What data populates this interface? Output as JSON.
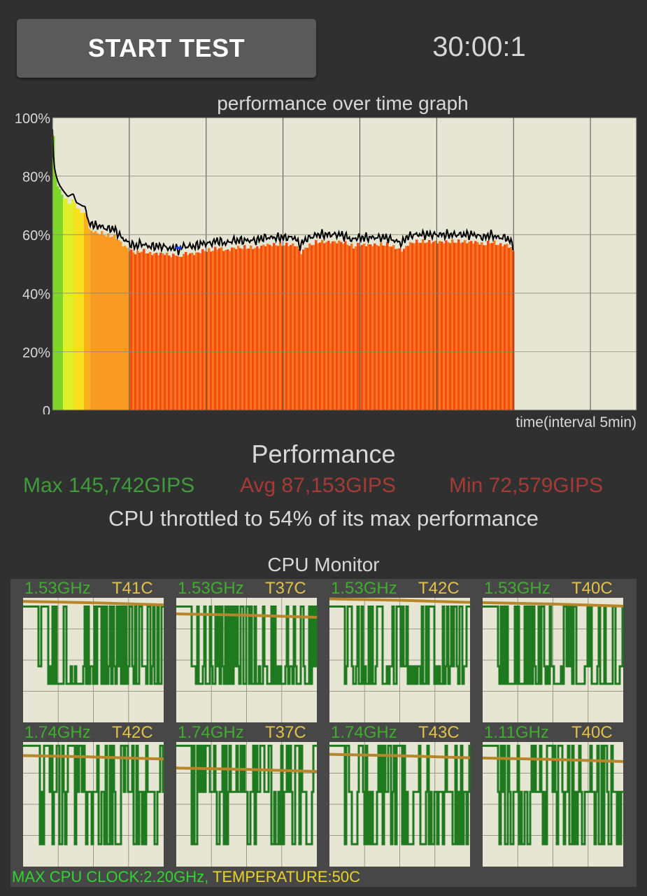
{
  "header": {
    "start_button": "START TEST",
    "timer": "30:00:1"
  },
  "graph": {
    "title": "performance over time graph",
    "y_ticks": [
      "100%",
      "80%",
      "60%",
      "40%",
      "20%",
      "0"
    ],
    "x_label": "time(interval 5min)",
    "progress_fraction": 0.786,
    "chart_data": {
      "type": "area",
      "title": "performance over time graph",
      "xlabel": "time(interval 5min)",
      "ylabel": "",
      "ylim": [
        0,
        100
      ],
      "grid": true,
      "x_intervals": 7.6,
      "points": [
        [
          0.0,
          96
        ],
        [
          0.01,
          88
        ],
        [
          0.03,
          82
        ],
        [
          0.06,
          79
        ],
        [
          0.09,
          77
        ],
        [
          0.14,
          75
        ],
        [
          0.2,
          73
        ],
        [
          0.27,
          74
        ],
        [
          0.31,
          71
        ],
        [
          0.38,
          70
        ],
        [
          0.44,
          69
        ],
        [
          0.47,
          63
        ],
        [
          0.5,
          64
        ],
        [
          0.56,
          63
        ],
        [
          0.62,
          63
        ],
        [
          0.7,
          62
        ],
        [
          0.8,
          62
        ],
        [
          0.9,
          59
        ],
        [
          1.0,
          57
        ],
        [
          1.08,
          56
        ],
        [
          1.15,
          57
        ],
        [
          1.25,
          56
        ],
        [
          1.35,
          56
        ],
        [
          1.45,
          56
        ],
        [
          1.55,
          55
        ],
        [
          1.6,
          56
        ],
        [
          1.64,
          54
        ],
        [
          1.68,
          56
        ],
        [
          1.75,
          56
        ],
        [
          1.85,
          56
        ],
        [
          1.95,
          57
        ],
        [
          2.05,
          57
        ],
        [
          2.15,
          58
        ],
        [
          2.25,
          57
        ],
        [
          2.35,
          58
        ],
        [
          2.45,
          58
        ],
        [
          2.55,
          58
        ],
        [
          2.65,
          58
        ],
        [
          2.75,
          59
        ],
        [
          2.85,
          59
        ],
        [
          2.95,
          59
        ],
        [
          3.05,
          59
        ],
        [
          3.15,
          59
        ],
        [
          3.23,
          56
        ],
        [
          3.27,
          58
        ],
        [
          3.35,
          59
        ],
        [
          3.45,
          60
        ],
        [
          3.55,
          60
        ],
        [
          3.65,
          60
        ],
        [
          3.75,
          60
        ],
        [
          3.85,
          59
        ],
        [
          3.9,
          58
        ],
        [
          3.95,
          59
        ],
        [
          4.05,
          59
        ],
        [
          4.15,
          59
        ],
        [
          4.25,
          59
        ],
        [
          4.35,
          59
        ],
        [
          4.45,
          58
        ],
        [
          4.55,
          57
        ],
        [
          4.6,
          59
        ],
        [
          4.7,
          60
        ],
        [
          4.8,
          60
        ],
        [
          4.9,
          60
        ],
        [
          5.0,
          60
        ],
        [
          5.1,
          60
        ],
        [
          5.2,
          60
        ],
        [
          5.3,
          60
        ],
        [
          5.4,
          60
        ],
        [
          5.5,
          60
        ],
        [
          5.6,
          59
        ],
        [
          5.7,
          60
        ],
        [
          5.8,
          59
        ],
        [
          5.9,
          59
        ],
        [
          5.95,
          58
        ],
        [
          6.0,
          56
        ]
      ]
    }
  },
  "performance": {
    "title": "Performance",
    "max": "Max 145,742GIPS",
    "avg": "Avg 87,153GIPS",
    "min": "Min 72,579GIPS",
    "throttle": "CPU throttled to 54% of its max performance"
  },
  "cpu_monitor": {
    "title": "CPU Monitor",
    "cores": [
      {
        "freq": "1.53GHz",
        "temp": "T41C",
        "hi": 0.93,
        "lo": 0.31,
        "temp_level": 0.96
      },
      {
        "freq": "1.53GHz",
        "temp": "T37C",
        "hi": 0.93,
        "lo": 0.31,
        "temp_level": 0.86
      },
      {
        "freq": "1.53GHz",
        "temp": "T42C",
        "hi": 0.93,
        "lo": 0.31,
        "temp_level": 0.98
      },
      {
        "freq": "1.53GHz",
        "temp": "T40C",
        "hi": 0.93,
        "lo": 0.31,
        "temp_level": 0.95
      },
      {
        "freq": "1.74GHz",
        "temp": "T42C",
        "hi": 0.97,
        "lo": 0.6,
        "temp_level": 0.88
      },
      {
        "freq": "1.74GHz",
        "temp": "T37C",
        "hi": 0.97,
        "lo": 0.6,
        "temp_level": 0.78
      },
      {
        "freq": "1.74GHz",
        "temp": "T43C",
        "hi": 0.97,
        "lo": 0.6,
        "temp_level": 0.89
      },
      {
        "freq": "1.11GHz",
        "temp": "T40C",
        "hi": 0.97,
        "lo": 0.6,
        "temp_level": 0.86
      }
    ]
  },
  "footer": {
    "max_clock": "MAX CPU CLOCK:2.20GHz,",
    "temperature": "TEMPERATURE:50C"
  },
  "colors": {
    "plot_bg": "#e7e6d5",
    "grid": "#4a4a4a",
    "line": "#000000",
    "cpu_line": "#1f7a1f",
    "temp_line": "#b8862a"
  }
}
